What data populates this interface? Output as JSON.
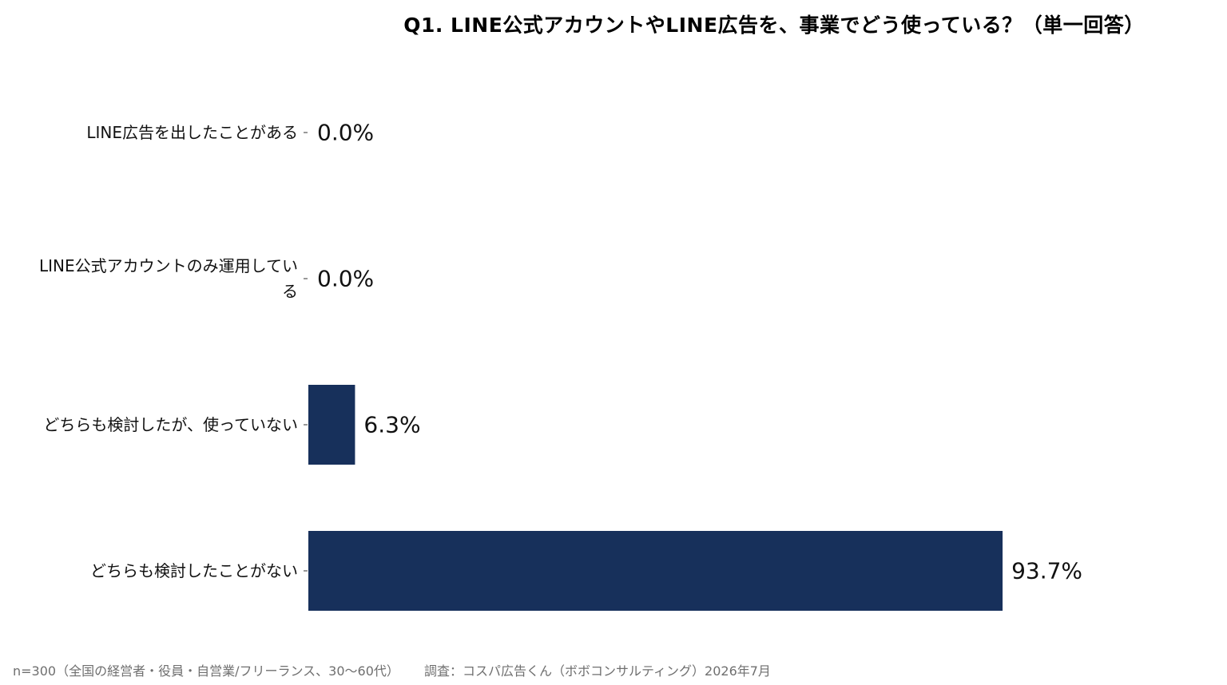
{
  "chart_data": {
    "type": "bar",
    "orientation": "horizontal",
    "title": "Q1. LINE公式アカウントやLINE広告を、事業でどう使っている？（単一回答）",
    "categories": [
      [
        "LINE広告を出したことがある"
      ],
      [
        "LINE公式アカウントのみ運用してい",
        "る"
      ],
      [
        "どちらも検討したが、使っていない"
      ],
      [
        "どちらも検討したことがない"
      ]
    ],
    "values": [
      0.0,
      0.0,
      6.3,
      93.7
    ],
    "value_labels": [
      "0.0%",
      "0.0%",
      "6.3%",
      "93.7%"
    ],
    "bar_color": "#17305b",
    "grid": false
  },
  "footer": {
    "sample": "n=300（全国の経営者・役員・自営業/フリーランス、30〜60代）",
    "source": "調査：コスパ広告くん（ボボコンサルティング）2026年7月"
  }
}
